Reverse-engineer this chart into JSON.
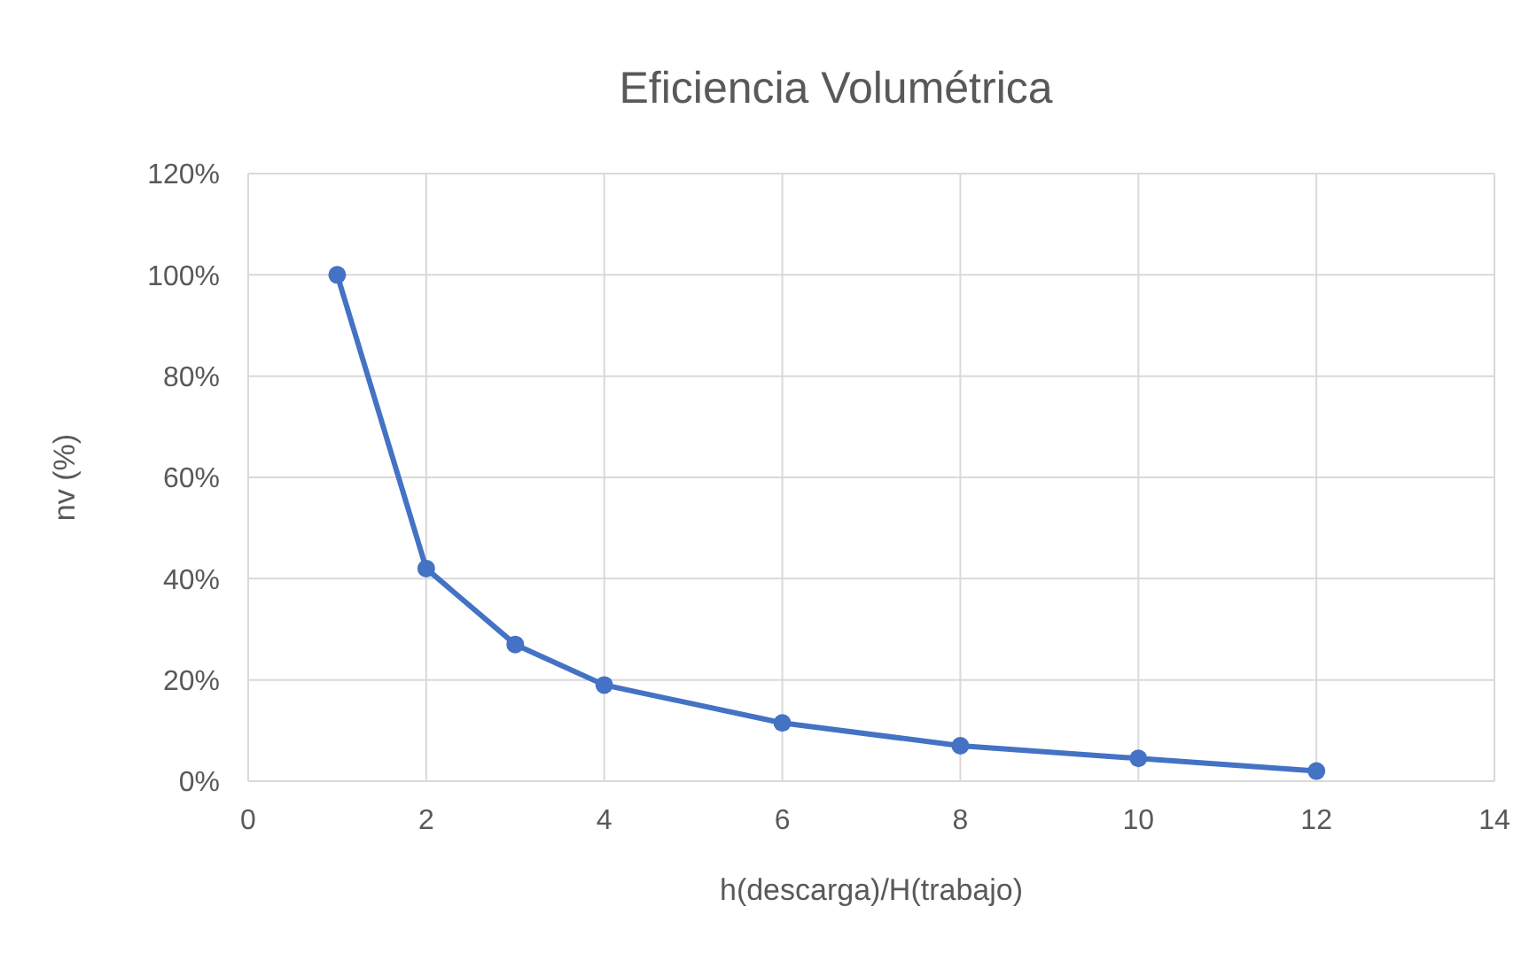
{
  "chart_data": {
    "type": "line",
    "title": "Eficiencia Volumétrica",
    "xlabel": "h(descarga)/H(trabajo)",
    "ylabel": "nv (%)",
    "x": [
      1,
      2,
      3,
      4,
      6,
      8,
      10,
      12
    ],
    "series": [
      {
        "color": "#4472c4",
        "values": [
          100,
          42,
          27,
          19,
          11.5,
          7,
          4.5,
          2
        ]
      }
    ],
    "xlim": [
      0,
      14
    ],
    "xticks": [
      0,
      2,
      4,
      6,
      8,
      10,
      12,
      14
    ],
    "ylim": [
      0,
      120
    ],
    "yticks": [
      {
        "value": 0,
        "label": "0%"
      },
      {
        "value": 20,
        "label": "20%"
      },
      {
        "value": 40,
        "label": "40%"
      },
      {
        "value": 60,
        "label": "60%"
      },
      {
        "value": 80,
        "label": "80%"
      },
      {
        "value": 100,
        "label": "100%"
      },
      {
        "value": 120,
        "label": "120%"
      }
    ],
    "grid": true,
    "marker": "circle",
    "line_style": "solid"
  }
}
